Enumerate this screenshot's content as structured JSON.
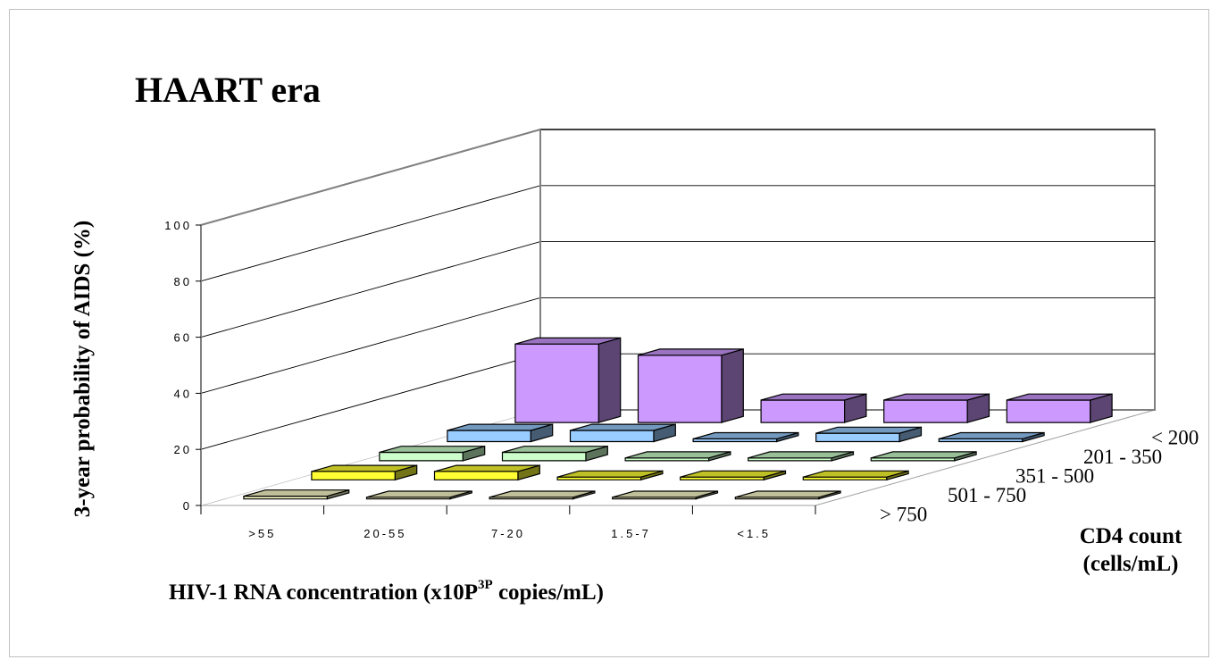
{
  "chart_data": {
    "type": "bar",
    "variant": "3d-bar",
    "title": "HAART era",
    "ylabel": "3-year probability of AIDS (%)",
    "xlabel": {
      "main": "HIV-1 RNA concentration (x10P",
      "sup": "3P",
      "rest": " copies/mL)"
    },
    "zlabel": [
      "CD4 count",
      "(cells/mL)"
    ],
    "ylim": [
      0,
      100
    ],
    "yticks": [
      "0",
      "20",
      "40",
      "60",
      "80",
      "100"
    ],
    "categories": [
      ">55",
      "20-55",
      "7-20",
      "1.5-7",
      "<1.5"
    ],
    "series": [
      {
        "name": "< 200",
        "color": "#cc99ff",
        "values": [
          28,
          24,
          8,
          8,
          8
        ]
      },
      {
        "name": "201 - 350",
        "color": "#99ccff",
        "values": [
          4,
          4,
          1,
          3,
          1
        ]
      },
      {
        "name": "351 - 500",
        "color": "#ccffcc",
        "values": [
          3,
          3,
          1,
          1,
          1
        ]
      },
      {
        "name": "501 - 750",
        "color": "#ffff33",
        "values": [
          3,
          3,
          1,
          1,
          1
        ]
      },
      {
        "name": "> 750",
        "color": "#ffffcc",
        "values": [
          1,
          0,
          0,
          0,
          0
        ]
      }
    ],
    "grid": true,
    "legend": "none"
  }
}
